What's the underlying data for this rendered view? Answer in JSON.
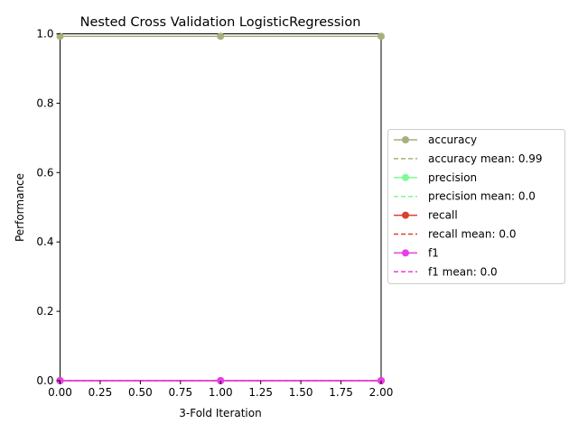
{
  "chart_data": {
    "type": "line",
    "title": "Nested Cross Validation LogisticRegression",
    "xlabel": "3-Fold Iteration",
    "ylabel": "Performance",
    "xlim": [
      0,
      2
    ],
    "ylim": [
      0,
      1
    ],
    "xticks": [
      "0.00",
      "0.25",
      "0.50",
      "0.75",
      "1.00",
      "1.25",
      "1.50",
      "1.75",
      "2.00"
    ],
    "yticks": [
      "0.0",
      "0.2",
      "0.4",
      "0.6",
      "0.8",
      "1.0"
    ],
    "grid": false,
    "legend_position": "center-right outside",
    "x": [
      0,
      1,
      2
    ],
    "series": [
      {
        "name": "accuracy",
        "values": [
          0.993,
          0.993,
          0.993
        ],
        "color": "#a8b07a",
        "mean_label": "accuracy mean: 0.99",
        "mean": 0.993
      },
      {
        "name": "precision",
        "values": [
          0.0,
          0.0,
          0.0
        ],
        "color": "#7dfa94",
        "mean_label": "precision mean: 0.0",
        "mean": 0.0
      },
      {
        "name": "recall",
        "values": [
          0.0,
          0.0,
          0.0
        ],
        "color": "#d9402f",
        "mean_label": "recall mean: 0.0",
        "mean": 0.0
      },
      {
        "name": "f1",
        "values": [
          0.0,
          0.0,
          0.0
        ],
        "color": "#e93ee8",
        "mean_label": "f1 mean: 0.0",
        "mean": 0.0
      }
    ]
  }
}
